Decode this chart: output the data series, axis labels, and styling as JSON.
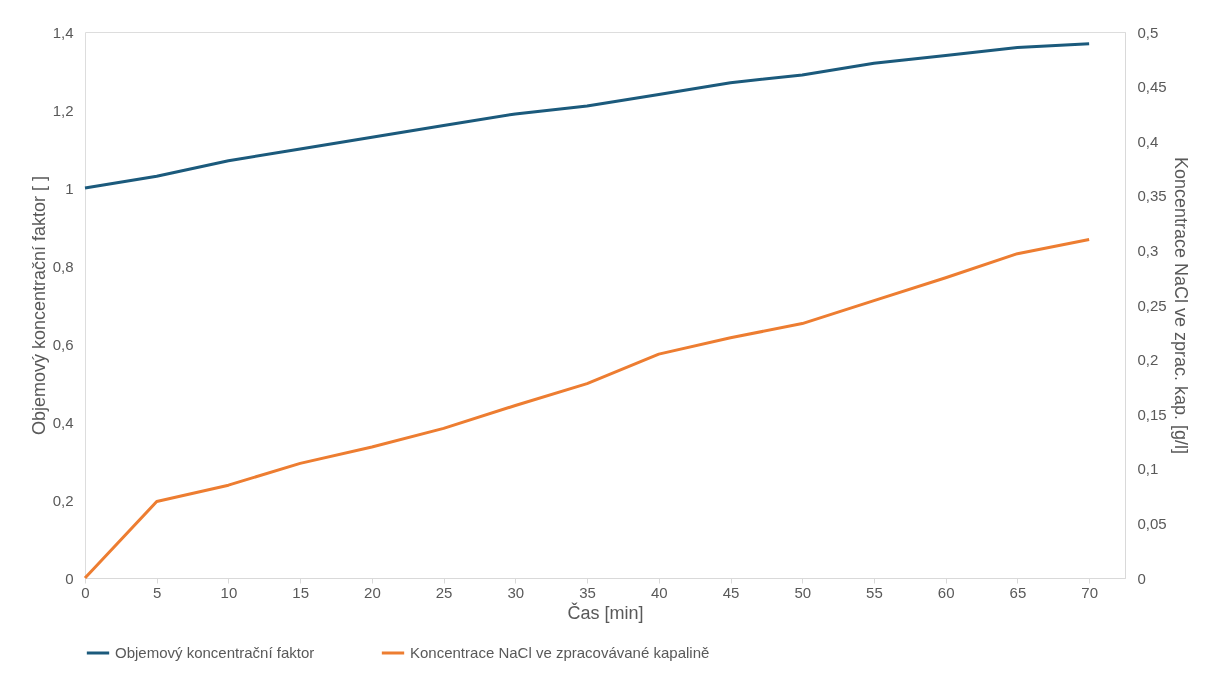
{
  "chart_data": {
    "type": "line",
    "xlabel": "Čas [min]",
    "ylabel": "Objemový koncentrační faktor  [ ]",
    "y2label": "Koncentrace NaCl ve zprac. kap. [g/l]",
    "x": [
      0,
      5,
      10,
      15,
      20,
      25,
      30,
      35,
      40,
      45,
      50,
      55,
      60,
      65,
      70
    ],
    "series": [
      {
        "name": "Objemový koncentrační faktor",
        "color": "#1b5a7c",
        "values": [
          1.0,
          1.03,
          1.07,
          1.1,
          1.13,
          1.16,
          1.19,
          1.21,
          1.24,
          1.27,
          1.29,
          1.32,
          1.34,
          1.36,
          1.37
        ]
      },
      {
        "name": "Koncentrace NaCl ve zpracovávané kapalině",
        "color": "#ed7d31",
        "axis": "y2",
        "values": [
          0,
          0.07,
          0.085,
          0.105,
          0.12,
          0.137,
          0.158,
          0.178,
          0.205,
          0.22,
          0.233,
          0.254,
          0.275,
          0.297,
          0.31
        ]
      }
    ],
    "xlim": [
      0,
      72.5
    ],
    "xticks": [
      0,
      5,
      10,
      15,
      20,
      25,
      30,
      35,
      40,
      45,
      50,
      55,
      60,
      65,
      70
    ],
    "ylim": [
      0,
      1.4
    ],
    "yticks": [
      {
        "value": 0,
        "label": "0"
      },
      {
        "value": 0.2,
        "label": "0,2"
      },
      {
        "value": 0.4,
        "label": "0,4"
      },
      {
        "value": 0.6,
        "label": "0,6"
      },
      {
        "value": 0.8,
        "label": "0,8"
      },
      {
        "value": 1,
        "label": "1"
      },
      {
        "value": 1.2,
        "label": "1,2"
      },
      {
        "value": 1.4,
        "label": "1,4"
      }
    ],
    "y2lim": [
      0,
      0.5
    ],
    "y2ticks": [
      {
        "value": 0,
        "label": "0"
      },
      {
        "value": 0.05,
        "label": "0,05"
      },
      {
        "value": 0.1,
        "label": "0,1"
      },
      {
        "value": 0.15,
        "label": "0,15"
      },
      {
        "value": 0.2,
        "label": "0,2"
      },
      {
        "value": 0.25,
        "label": "0,25"
      },
      {
        "value": 0.3,
        "label": "0,3"
      },
      {
        "value": 0.35,
        "label": "0,35"
      },
      {
        "value": 0.4,
        "label": "0,4"
      },
      {
        "value": 0.45,
        "label": "0,45"
      },
      {
        "value": 0.5,
        "label": "0,5"
      }
    ],
    "grid": false,
    "legend": "bottom",
    "marker": "none",
    "line_style": "solid"
  }
}
